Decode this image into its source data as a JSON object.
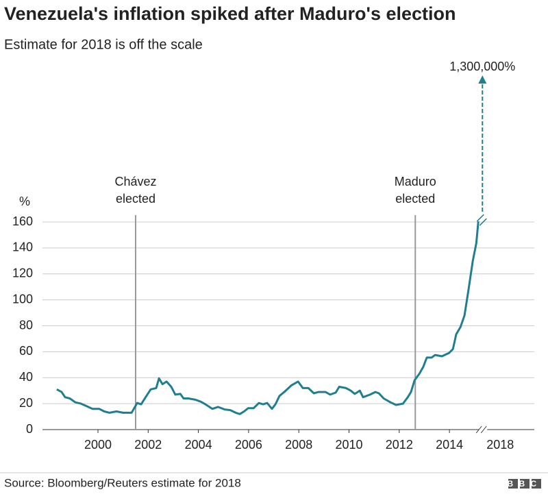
{
  "chart_data": {
    "type": "line",
    "title": "Venezuela's inflation spiked after Maduro's election",
    "subtitle": "Estimate for 2018 is off the scale",
    "y_label": "%",
    "source": "Source: Bloomberg/Reuters estimate for 2018",
    "logo": "BBC",
    "color": "#1f7f8e",
    "x": [
      1998.36,
      1998.55,
      1998.69,
      1998.88,
      1999.1,
      1999.32,
      1999.5,
      1999.78,
      2000.05,
      2000.25,
      2000.46,
      2000.74,
      2001.0,
      2001.34,
      2001.56,
      2001.72,
      2001.9,
      2002.1,
      2002.32,
      2002.43,
      2002.57,
      2002.73,
      2002.92,
      2003.08,
      2003.28,
      2003.41,
      2003.6,
      2003.88,
      2004.1,
      2004.28,
      2004.56,
      2004.78,
      2005.05,
      2005.27,
      2005.49,
      2005.65,
      2005.82,
      2005.98,
      2006.2,
      2006.41,
      2006.58,
      2006.74,
      2006.93,
      2007.07,
      2007.23,
      2007.42,
      2007.7,
      2007.97,
      2008.16,
      2008.38,
      2008.6,
      2008.79,
      2009.06,
      2009.25,
      2009.47,
      2009.61,
      2009.88,
      2010.07,
      2010.23,
      2010.43,
      2010.56,
      2010.84,
      2011.05,
      2011.19,
      2011.38,
      2011.65,
      2011.87,
      2012.15,
      2012.34,
      2012.47,
      2012.61,
      2012.8,
      2012.96,
      2013.1,
      2013.29,
      2013.43,
      2013.7,
      2013.98,
      2014.14,
      2014.27,
      2014.44,
      2014.6,
      2014.77,
      2014.93,
      2015.07,
      2015.15
    ],
    "values": [
      31,
      29,
      25,
      24,
      21,
      20,
      18.5,
      16,
      16,
      14,
      13,
      14,
      13,
      13,
      20.5,
      19.5,
      25,
      31,
      32,
      39.5,
      35,
      37,
      33,
      27,
      27.5,
      24,
      24,
      23,
      21.5,
      19.5,
      16,
      17.5,
      15.5,
      15,
      13,
      12,
      14,
      16.5,
      16.5,
      20.5,
      19.5,
      20.5,
      16,
      19.5,
      26,
      29,
      34,
      37,
      32,
      32,
      28,
      29,
      29,
      27,
      28.5,
      33,
      32,
      30,
      27.5,
      30,
      25,
      27,
      29,
      28,
      24,
      21,
      19,
      20,
      25,
      29,
      38,
      43,
      48.5,
      55.5,
      55.5,
      57.5,
      56.5,
      59,
      62,
      73.5,
      79,
      88,
      109,
      130,
      143.5,
      160.5
    ],
    "xlim": [
      1997.79,
      2017.38
    ],
    "xticks": [
      2000,
      2002,
      2004,
      2006,
      2008,
      2010,
      2012,
      2014
    ],
    "x_break": 2015.34,
    "x_break_tick": 2018,
    "ylim": [
      0,
      160
    ],
    "yticks": [
      0,
      20,
      40,
      60,
      80,
      100,
      120,
      140,
      160
    ],
    "grid": true,
    "markers": [
      {
        "x": 2001.5,
        "label": [
          "Chávez",
          "elected"
        ]
      },
      {
        "x": 2012.64,
        "label": [
          "Maduro",
          "elected"
        ]
      }
    ],
    "estimate": {
      "value": 1300000,
      "label": "1,300,000%"
    }
  }
}
